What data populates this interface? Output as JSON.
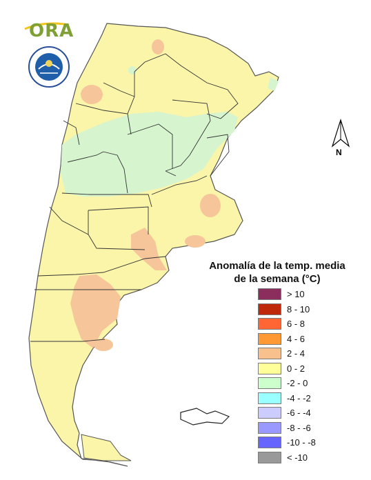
{
  "map": {
    "legend_title_line1": "Anomalía de la temp. media",
    "legend_title_line2": "de la semana (°C)",
    "legend": [
      {
        "label": "> 10",
        "color": "#8b2e5e"
      },
      {
        "label": "8 - 10",
        "color": "#c0280c"
      },
      {
        "label": "6 - 8",
        "color": "#ff6633"
      },
      {
        "label": "4 - 6",
        "color": "#ff9933"
      },
      {
        "label": "2 - 4",
        "color": "#f7c08c"
      },
      {
        "label": "0 - 2",
        "color": "#ffff99"
      },
      {
        "label": "-2 - 0",
        "color": "#ccffcc"
      },
      {
        "label": "-4 - -2",
        "color": "#99ffff"
      },
      {
        "label": "-6 - -4",
        "color": "#ccccff"
      },
      {
        "label": "-8 - -6",
        "color": "#9999ff"
      },
      {
        "label": "-10 - -8",
        "color": "#6666ff"
      },
      {
        "label": "< -10",
        "color": "#999999"
      }
    ],
    "north_label": "N"
  },
  "logos": {
    "ora": "ORA"
  },
  "colors": {
    "positive_low": "#faf5a8",
    "positive_mid": "#f7c59a",
    "negative_low": "#d6f5cf",
    "border": "#333333"
  }
}
